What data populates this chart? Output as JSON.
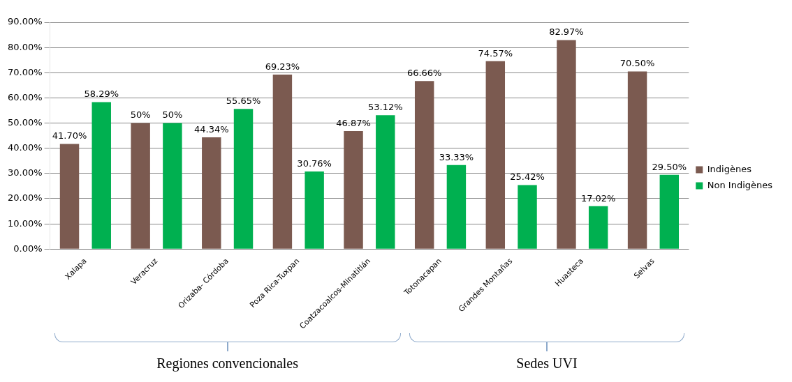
{
  "chart_data": {
    "type": "bar",
    "categories": [
      "Xalapa",
      "Veracruz",
      "Orizaba- Córdoba",
      "Poza Rica-Tuxpan",
      "Coatzacoalcos-Minatitlán",
      "Totonacapan",
      "Grandes Montañas",
      "Huasteca",
      "Selvas"
    ],
    "series": [
      {
        "name": "Indigènes",
        "color": "#7b5a50",
        "values": [
          41.7,
          50,
          44.34,
          69.23,
          46.87,
          66.66,
          74.57,
          82.97,
          70.5
        ],
        "value_labels": [
          "41.70%",
          "50%",
          "44.34%",
          "69.23%",
          "46.87%",
          "66.66%",
          "74.57%",
          "82.97%",
          "70.50%"
        ]
      },
      {
        "name": "Non Indigènes",
        "color": "#00b050",
        "values": [
          58.29,
          50,
          55.65,
          30.76,
          53.12,
          33.33,
          25.42,
          17.02,
          29.5
        ],
        "value_labels": [
          "58.29%",
          "50%",
          "55.65%",
          "30.76%",
          "53.12%",
          "33.33%",
          "25.42%",
          "17.02%",
          "29.50%"
        ]
      }
    ],
    "ylim": [
      0,
      90
    ],
    "yticks": [
      {
        "value": 0,
        "label": "0.00%"
      },
      {
        "value": 10,
        "label": "10.00%"
      },
      {
        "value": 20,
        "label": "20.00%"
      },
      {
        "value": 30,
        "label": "30.00%"
      },
      {
        "value": 40,
        "label": "40.00%"
      },
      {
        "value": 50,
        "label": "50.00%"
      },
      {
        "value": 60,
        "label": "60.00%"
      },
      {
        "value": 70,
        "label": "70.00%"
      },
      {
        "value": 80,
        "label": "80.00%"
      },
      {
        "value": 90,
        "label": "90.00%"
      }
    ],
    "grid": "y",
    "legend": "right",
    "annotations": [
      "Regiones convencionales",
      "Sedes UVI"
    ]
  }
}
